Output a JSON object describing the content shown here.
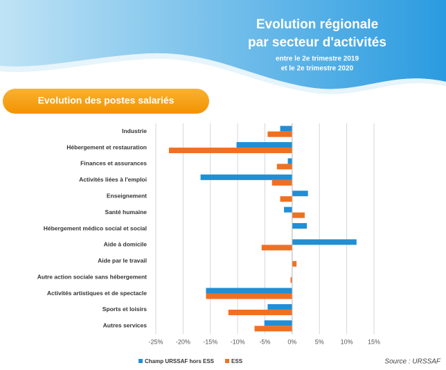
{
  "chart_data": {
    "type": "hbar",
    "title": [
      "Evolution régionale",
      "par secteur d'activités"
    ],
    "subtitle": [
      "entre le 2e trimestre 2019",
      "et le 2e trimestre 2020"
    ],
    "section_label": "Evolution des postes salariés",
    "source": "Source : URSSAF",
    "categories": [
      "Industrie",
      "Hébergement et restauration",
      "Finances et assurances",
      "Activités liées à l'emploi",
      "Enseignement",
      "Santé humaine",
      "Hébergement médico social et social",
      "Aide à domicile",
      "Aide par le travail",
      "Autre action sociale sans hébergement",
      "Activités artistiques et de spectacle",
      "Sports et loisirs",
      "Autres services"
    ],
    "series": [
      {
        "name": "Champ URSSAF hors ESS",
        "color": "#1f8fd6",
        "values": [
          -2.2,
          -10.2,
          -0.8,
          -16.8,
          2.9,
          -1.5,
          2.7,
          11.8,
          0,
          0,
          -15.8,
          -4.5,
          -5.1
        ]
      },
      {
        "name": "ESS",
        "color": "#f07022",
        "values": [
          -4.5,
          -22.6,
          -2.8,
          -3.7,
          -2.2,
          2.3,
          0,
          -5.6,
          0.8,
          -0.3,
          -15.8,
          -11.7,
          -6.9
        ]
      }
    ],
    "xlim": [
      -25,
      15
    ],
    "xticks": [
      {
        "value": -25,
        "label": "-25%"
      },
      {
        "value": -20,
        "label": "-20%"
      },
      {
        "value": -15,
        "label": "-15%"
      },
      {
        "value": -10,
        "label": "-10%"
      },
      {
        "value": -5,
        "label": "-5%"
      },
      {
        "value": 0,
        "label": "0%"
      },
      {
        "value": 5,
        "label": "5%"
      },
      {
        "value": 10,
        "label": "10%"
      },
      {
        "value": 15,
        "label": "15%"
      }
    ],
    "grid": true,
    "legend": "bottom-left"
  }
}
